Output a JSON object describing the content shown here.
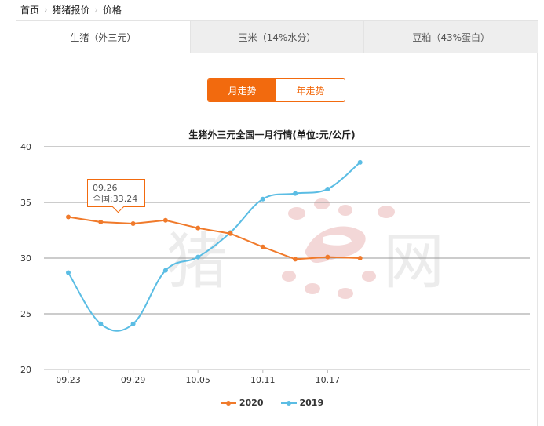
{
  "breadcrumb": {
    "home": "首页",
    "section": "猪猪报价",
    "current": "价格",
    "separator": "›"
  },
  "tabs": [
    {
      "label": "生猪（外三元）"
    },
    {
      "label": "玉米（14%水分）"
    },
    {
      "label": "豆粕（43%蛋白）"
    }
  ],
  "toggle": {
    "month": "月走势",
    "year": "年走势"
  },
  "watermark": {
    "text": "猪网"
  },
  "tooltip": {
    "date": "09.26",
    "value": "全国:33.24"
  },
  "colors": {
    "accent": "#f26a0e",
    "series_2020": "#f07a2b",
    "series_2019": "#5bbde4"
  },
  "chart_data": {
    "type": "line",
    "title": "生猪外三元全国一月行情(单位:元/公斤)",
    "ylim": [
      20,
      40
    ],
    "yticks": [
      20,
      25,
      30,
      35,
      40
    ],
    "x": [
      "09.23",
      "09.26",
      "09.29",
      "10.02",
      "10.05",
      "10.08",
      "10.11",
      "10.14",
      "10.17",
      "10.20"
    ],
    "xtick_labels": [
      "09.23",
      "09.29",
      "10.05",
      "10.11",
      "10.17"
    ],
    "legend_position": "bottom-center",
    "grid": true,
    "series": [
      {
        "name": "2020",
        "color": "#f07a2b",
        "smooth": false,
        "values": [
          33.7,
          33.24,
          33.1,
          33.4,
          32.7,
          32.2,
          31.0,
          29.9,
          30.1,
          30.0
        ]
      },
      {
        "name": "2019",
        "color": "#5bbde4",
        "smooth": true,
        "values": [
          28.7,
          24.1,
          24.1,
          28.9,
          30.1,
          32.3,
          35.3,
          35.8,
          36.2,
          38.6
        ]
      }
    ]
  }
}
